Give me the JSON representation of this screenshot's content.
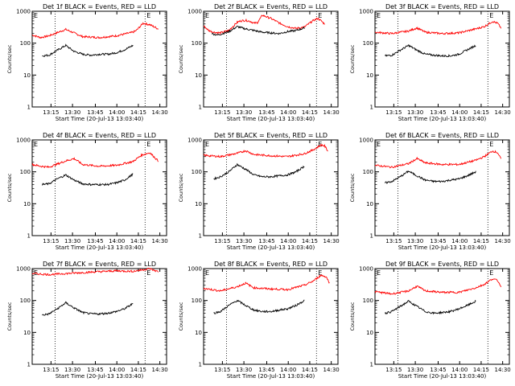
{
  "chart_data": [
    {
      "type": "line",
      "title": "Det 1f BLACK = Events, RED = LLD",
      "xlabel": "Start Time (20-Jul-13 13:03:40)",
      "ylabel": "Counts/sec",
      "scale": "log",
      "ylim": [
        1,
        1000
      ],
      "yticks": [
        "1",
        "10",
        "100",
        "1000"
      ],
      "xticks": [
        "13:15",
        "13:30",
        "13:45",
        "14:00",
        "14:15",
        "14:30"
      ],
      "markers": [
        "E",
        "E"
      ],
      "series": [
        {
          "color": "#ff0000",
          "x": [
            0,
            5,
            10,
            20,
            30,
            40,
            50,
            60,
            62,
            66,
            70,
            75
          ],
          "y": [
            180,
            150,
            170,
            270,
            160,
            150,
            170,
            220,
            250,
            420,
            380,
            280
          ]
        },
        {
          "color": "#000000",
          "x": [
            6,
            10,
            15,
            20,
            25,
            30,
            35,
            40,
            45,
            50,
            55,
            60
          ],
          "y": [
            40,
            42,
            60,
            85,
            55,
            45,
            42,
            45,
            45,
            50,
            62,
            85
          ]
        }
      ]
    },
    {
      "type": "line",
      "title": "Det 2f BLACK = Events, RED = LLD",
      "xlabel": "",
      "ylabel": "",
      "scale": "log",
      "ylim": [
        1,
        1000
      ],
      "yticks": [
        "1",
        "10",
        "100",
        "1000"
      ],
      "xticks": [
        "13:15",
        "13:30",
        "13:45",
        "14:00",
        "14:15",
        "14:30"
      ],
      "markers": [
        "E",
        "E"
      ],
      "series": [
        {
          "color": "#ff0000",
          "x": [
            0,
            3,
            6,
            10,
            15,
            20,
            22,
            25,
            28,
            30,
            32,
            35,
            40,
            45,
            50,
            55,
            60,
            65,
            68,
            70,
            72
          ],
          "y": [
            350,
            250,
            220,
            210,
            250,
            450,
            500,
            520,
            480,
            420,
            440,
            750,
            600,
            430,
            330,
            290,
            320,
            500,
            600,
            500,
            400
          ]
        },
        {
          "color": "#000000",
          "x": [
            5,
            8,
            10,
            15,
            20,
            25,
            30,
            35,
            40,
            45,
            50,
            55,
            60
          ],
          "y": [
            200,
            180,
            190,
            230,
            330,
            280,
            250,
            220,
            210,
            200,
            230,
            250,
            300
          ]
        }
      ]
    },
    {
      "type": "line",
      "title": "Det 3f BLACK = Events, RED = LLD",
      "xlabel": "",
      "ylabel": "",
      "scale": "log",
      "ylim": [
        1,
        1000
      ],
      "yticks": [
        "1",
        "10",
        "100",
        "1000"
      ],
      "xticks": [
        "13:15",
        "13:30",
        "13:45",
        "14:00",
        "14:15",
        "14:30"
      ],
      "markers": [
        "E",
        "E"
      ],
      "series": [
        {
          "color": "#ff0000",
          "x": [
            0,
            10,
            20,
            25,
            30,
            40,
            50,
            60,
            65,
            70,
            73,
            75
          ],
          "y": [
            220,
            200,
            240,
            300,
            220,
            200,
            210,
            280,
            330,
            480,
            420,
            300
          ]
        },
        {
          "color": "#000000",
          "x": [
            6,
            10,
            15,
            20,
            25,
            30,
            35,
            40,
            45,
            50,
            55,
            60
          ],
          "y": [
            40,
            42,
            60,
            85,
            60,
            45,
            42,
            40,
            40,
            45,
            62,
            85
          ]
        }
      ]
    },
    {
      "type": "line",
      "title": "Det 4f BLACK = Events, RED = LLD",
      "xlabel": "",
      "ylabel": "",
      "scale": "log",
      "ylim": [
        1,
        1000
      ],
      "yticks": [
        "1",
        "10",
        "100",
        "1000"
      ],
      "xticks": [
        "13:15",
        "13:30",
        "13:45",
        "14:00",
        "14:15",
        "14:30"
      ],
      "markers": [
        "E",
        "E"
      ],
      "series": [
        {
          "color": "#ff0000",
          "x": [
            0,
            5,
            10,
            20,
            25,
            30,
            40,
            50,
            60,
            65,
            70,
            75
          ],
          "y": [
            170,
            150,
            140,
            220,
            260,
            170,
            150,
            160,
            210,
            330,
            400,
            220
          ]
        },
        {
          "color": "#000000",
          "x": [
            6,
            10,
            15,
            20,
            25,
            30,
            35,
            40,
            45,
            50,
            55,
            60
          ],
          "y": [
            40,
            42,
            60,
            80,
            55,
            42,
            40,
            40,
            40,
            45,
            55,
            85
          ]
        }
      ]
    },
    {
      "type": "line",
      "title": "Det 5f BLACK = Events, RED = LLD",
      "xlabel": "",
      "ylabel": "",
      "scale": "log",
      "ylim": [
        1,
        1000
      ],
      "yticks": [
        "1",
        "10",
        "100",
        "1000"
      ],
      "xticks": [
        "13:15",
        "13:30",
        "13:45",
        "14:00",
        "14:15",
        "14:30"
      ],
      "markers": [
        "E",
        "E"
      ],
      "series": [
        {
          "color": "#ff0000",
          "x": [
            0,
            10,
            20,
            25,
            30,
            40,
            50,
            60,
            65,
            70,
            72,
            74
          ],
          "y": [
            330,
            300,
            380,
            460,
            350,
            320,
            300,
            370,
            480,
            700,
            650,
            450
          ]
        },
        {
          "color": "#000000",
          "x": [
            6,
            10,
            15,
            20,
            25,
            30,
            35,
            40,
            45,
            50,
            55,
            60
          ],
          "y": [
            60,
            70,
            100,
            170,
            120,
            80,
            70,
            70,
            75,
            80,
            100,
            150
          ]
        }
      ]
    },
    {
      "type": "line",
      "title": "Det 6f BLACK = Events, RED = LLD",
      "xlabel": "",
      "ylabel": "",
      "scale": "log",
      "ylim": [
        1,
        1000
      ],
      "yticks": [
        "1",
        "10",
        "100",
        "1000"
      ],
      "xticks": [
        "13:15",
        "13:30",
        "13:45",
        "14:00",
        "14:15",
        "14:30"
      ],
      "markers": [
        "E",
        "E"
      ],
      "series": [
        {
          "color": "#ff0000",
          "x": [
            0,
            10,
            20,
            25,
            30,
            40,
            50,
            60,
            65,
            70,
            73,
            75
          ],
          "y": [
            160,
            140,
            180,
            260,
            190,
            170,
            170,
            230,
            300,
            450,
            400,
            250
          ]
        },
        {
          "color": "#000000",
          "x": [
            6,
            10,
            15,
            20,
            25,
            30,
            35,
            40,
            45,
            50,
            55,
            60
          ],
          "y": [
            45,
            50,
            70,
            105,
            75,
            55,
            50,
            50,
            55,
            60,
            75,
            100
          ]
        }
      ]
    },
    {
      "type": "line",
      "title": "Det 7f BLACK = Events, RED = LLD",
      "xlabel": "Start Time (20-Jul-13 13:03:40)",
      "ylabel": "",
      "scale": "log",
      "ylim": [
        1,
        1000
      ],
      "yticks": [
        "1",
        "10",
        "100",
        "1000"
      ],
      "xticks": [
        "13:15",
        "13:30",
        "13:45",
        "14:00",
        "14:15",
        "14:30"
      ],
      "markers": [
        "E",
        "E"
      ],
      "series": [
        {
          "color": "#ff0000",
          "x": [
            0,
            10,
            20,
            30,
            40,
            50,
            60,
            65,
            70,
            72,
            75
          ],
          "y": [
            700,
            650,
            700,
            750,
            800,
            850,
            820,
            900,
            1000,
            900,
            800
          ]
        },
        {
          "color": "#000000",
          "x": [
            6,
            10,
            15,
            20,
            25,
            30,
            35,
            40,
            45,
            50,
            55,
            60
          ],
          "y": [
            35,
            38,
            55,
            85,
            58,
            42,
            38,
            38,
            40,
            45,
            55,
            80
          ]
        }
      ]
    },
    {
      "type": "line",
      "title": "Det 8f BLACK = Events, RED = LLD",
      "xlabel": "Start Time (20-Jul-13 13:03:40)",
      "ylabel": "",
      "scale": "log",
      "ylim": [
        1,
        1000
      ],
      "yticks": [
        "1",
        "10",
        "100",
        "1000"
      ],
      "xticks": [
        "13:15",
        "13:30",
        "13:45",
        "14:00",
        "14:15",
        "14:30"
      ],
      "markers": [
        "E",
        "E"
      ],
      "series": [
        {
          "color": "#ff0000",
          "x": [
            0,
            10,
            20,
            25,
            30,
            40,
            50,
            60,
            65,
            70,
            73,
            75
          ],
          "y": [
            240,
            200,
            270,
            350,
            250,
            230,
            220,
            300,
            400,
            620,
            550,
            350
          ]
        },
        {
          "color": "#000000",
          "x": [
            6,
            10,
            15,
            20,
            25,
            30,
            35,
            40,
            45,
            50,
            55,
            60
          ],
          "y": [
            40,
            45,
            70,
            100,
            70,
            50,
            45,
            45,
            50,
            55,
            70,
            100
          ]
        }
      ]
    },
    {
      "type": "line",
      "title": "Det 9f BLACK = Events, RED = LLD",
      "xlabel": "Start Time (20-Jul-13 13:03:40)",
      "ylabel": "",
      "scale": "log",
      "ylim": [
        1,
        1000
      ],
      "yticks": [
        "1",
        "10",
        "100",
        "1000"
      ],
      "xticks": [
        "13:15",
        "13:30",
        "13:45",
        "14:00",
        "14:15",
        "14:30"
      ],
      "markers": [
        "E",
        "E"
      ],
      "series": [
        {
          "color": "#ff0000",
          "x": [
            0,
            10,
            20,
            25,
            30,
            40,
            50,
            60,
            65,
            70,
            73,
            75
          ],
          "y": [
            190,
            160,
            200,
            280,
            200,
            180,
            180,
            250,
            320,
            480,
            420,
            280
          ]
        },
        {
          "color": "#000000",
          "x": [
            6,
            10,
            15,
            20,
            25,
            30,
            35,
            40,
            45,
            50,
            55,
            60
          ],
          "y": [
            40,
            45,
            65,
            95,
            65,
            45,
            40,
            42,
            45,
            55,
            70,
            95
          ]
        }
      ]
    }
  ]
}
